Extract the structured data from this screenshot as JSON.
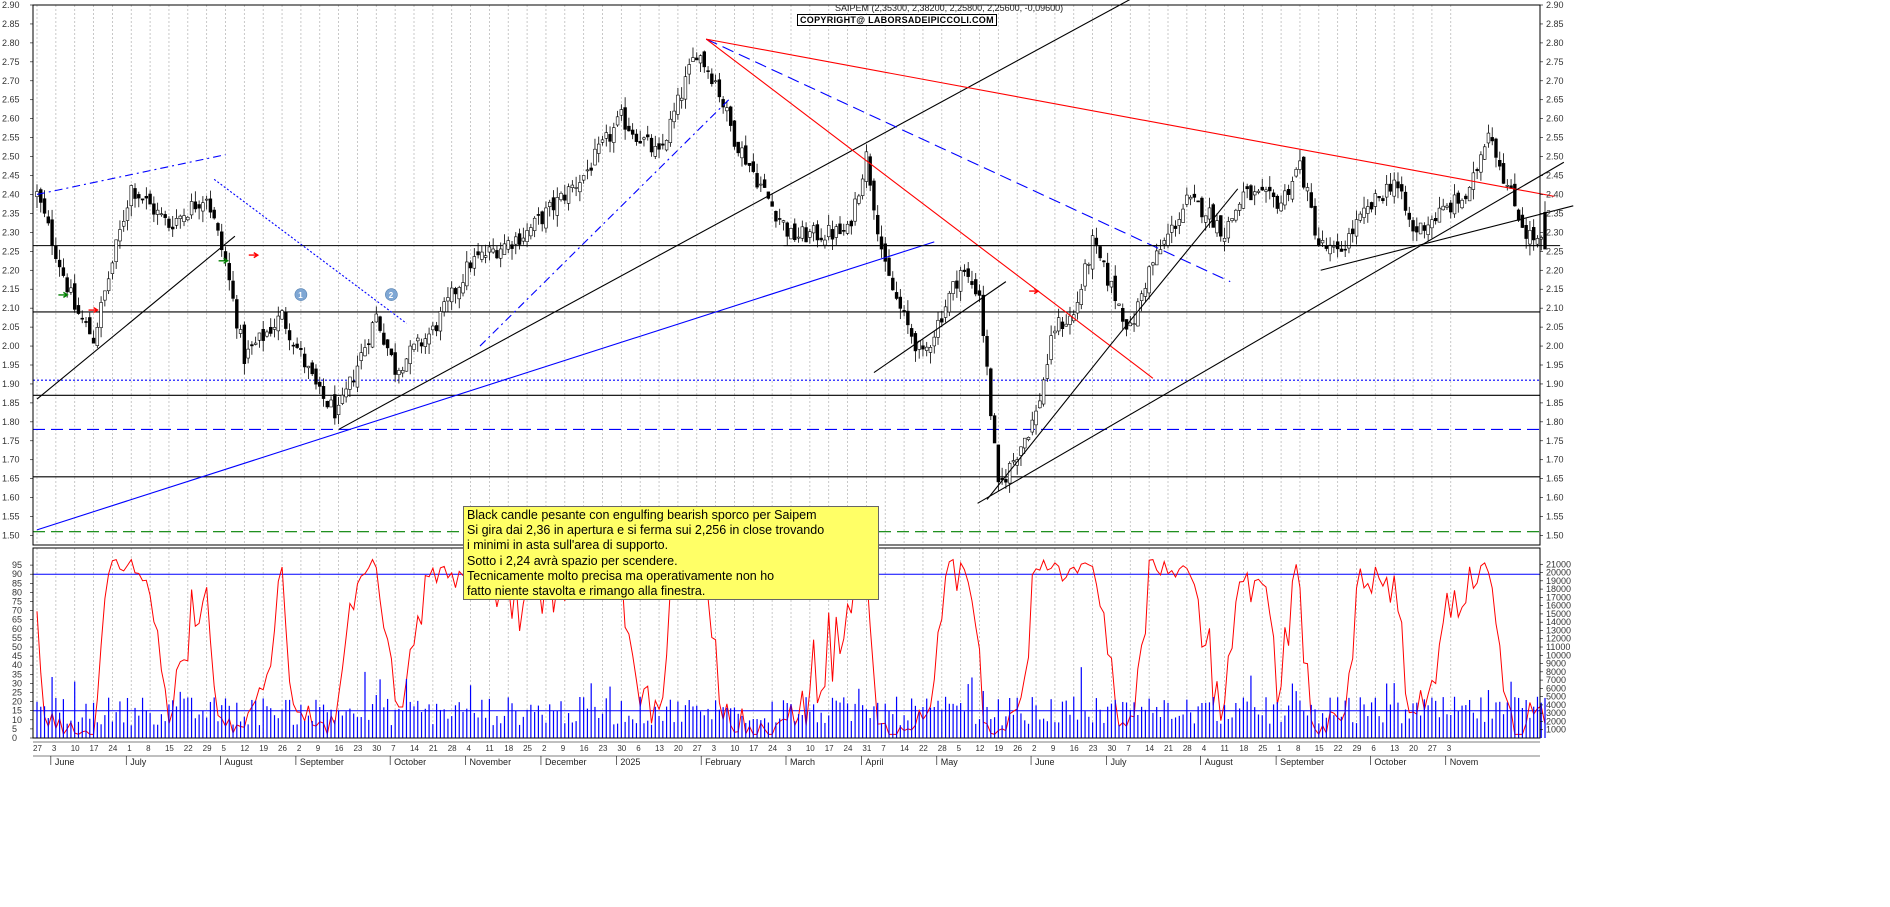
{
  "title": "SAIPEM (2,35300, 2,38200, 2,25800, 2,25600, -0,09600)",
  "copyright": "COPYRIGHT@ LABORSADEIPICCOLI.COM",
  "comment_lines": [
    "Black candle pesante con engulfing bearish sporco per Saipem",
    "Si gira dai 2,36 in apertura e si ferma sui 2,256 in close trovando",
    "i minimi in asta sull'area di supporto.",
    "Sotto i 2,24 avrà spazio per scendere.",
    "Tecnicamente molto precisa ma operativamente non ho",
    "fatto niente stavolta e rimango alla finestra."
  ],
  "colors": {
    "candle_up": "#ffffff",
    "candle_down": "#000000",
    "red_line": "#ff0000",
    "blue_line": "#0000ff",
    "green_line": "#008000",
    "oscillator": "#ff0000",
    "volume": "#0000ff",
    "comment_bg": "#ffff66"
  },
  "markers": [
    {
      "label": "1",
      "price": 2.12,
      "month_ref": "July 26"
    },
    {
      "label": "2",
      "price": 2.12,
      "month_ref": "September 23"
    }
  ],
  "chart_data": [
    {
      "type": "candlestick",
      "title": "SAIPEM (2,35300, 2,38200, 2,25800, 2,25600, -0,09600)",
      "ylim": [
        1.475,
        2.9
      ],
      "y_ticks": [
        "1.50",
        "1.55",
        "1.60",
        "1.65",
        "1.70",
        "1.75",
        "1.80",
        "1.85",
        "1.90",
        "1.95",
        "2.00",
        "2.05",
        "2.10",
        "2.15",
        "2.20",
        "2.25",
        "2.30",
        "2.35",
        "2.40",
        "2.45",
        "2.50",
        "2.55",
        "2.60",
        "2.65",
        "2.70",
        "2.75",
        "2.80",
        "2.85",
        "2.90"
      ],
      "months": [
        "June",
        "July",
        "August",
        "September",
        "October",
        "November",
        "December",
        "2025",
        "February",
        "March",
        "April",
        "May",
        "June",
        "July",
        "August",
        "September",
        "October",
        "Novem"
      ],
      "day_labels": [
        "27",
        "3",
        "10",
        "17",
        "24",
        "1",
        "8",
        "15",
        "22",
        "29",
        "5",
        "12",
        "19",
        "26",
        "2",
        "9",
        "16",
        "23",
        "30",
        "7",
        "14",
        "21",
        "28",
        "4",
        "11",
        "18",
        "25",
        "2",
        "9",
        "16",
        "23",
        "30",
        "6",
        "13",
        "20",
        "27",
        "3",
        "10",
        "17",
        "24",
        "3",
        "10",
        "17",
        "24",
        "31",
        "7",
        "14",
        "22",
        "28",
        "5",
        "12",
        "19",
        "26",
        "2",
        "9",
        "16",
        "23",
        "30",
        "7",
        "14",
        "21",
        "28",
        "4",
        "11",
        "18",
        "25",
        "1",
        "8",
        "15",
        "22",
        "29",
        "6",
        "13",
        "20",
        "27",
        "3"
      ],
      "anchors": [
        {
          "week": 0,
          "close": 2.4
        },
        {
          "week": 2,
          "close": 2.1
        },
        {
          "week": 3,
          "close": 2.02
        },
        {
          "week": 5,
          "close": 2.42
        },
        {
          "week": 7,
          "close": 2.32
        },
        {
          "week": 9,
          "close": 2.4
        },
        {
          "week": 10,
          "close": 2.22
        },
        {
          "week": 11,
          "close": 1.97
        },
        {
          "week": 13,
          "close": 2.08
        },
        {
          "week": 15,
          "close": 1.87
        },
        {
          "week": 16,
          "close": 1.82
        },
        {
          "week": 18,
          "close": 2.08
        },
        {
          "week": 19,
          "close": 1.94
        },
        {
          "week": 21,
          "close": 2.04
        },
        {
          "week": 23,
          "close": 2.22
        },
        {
          "week": 26,
          "close": 2.3
        },
        {
          "week": 29,
          "close": 2.45
        },
        {
          "week": 31,
          "close": 2.6
        },
        {
          "week": 33,
          "close": 2.5
        },
        {
          "week": 35,
          "close": 2.78
        },
        {
          "week": 36,
          "close": 2.7
        },
        {
          "week": 37,
          "close": 2.55
        },
        {
          "week": 39,
          "close": 2.37
        },
        {
          "week": 40,
          "close": 2.29
        },
        {
          "week": 43,
          "close": 2.3
        },
        {
          "week": 44,
          "close": 2.5
        },
        {
          "week": 45,
          "close": 2.2
        },
        {
          "week": 46,
          "close": 2.07
        },
        {
          "week": 47,
          "close": 1.97
        },
        {
          "week": 49,
          "close": 2.2
        },
        {
          "week": 50,
          "close": 2.14
        },
        {
          "week": 51,
          "close": 1.62
        },
        {
          "week": 52,
          "close": 1.72
        },
        {
          "week": 53,
          "close": 1.82
        },
        {
          "week": 54,
          "close": 2.05
        },
        {
          "week": 55,
          "close": 2.08
        },
        {
          "week": 56,
          "close": 2.27
        },
        {
          "week": 58,
          "close": 2.04
        },
        {
          "week": 59,
          "close": 2.2
        },
        {
          "week": 61,
          "close": 2.38
        },
        {
          "week": 62,
          "close": 2.36
        },
        {
          "week": 63,
          "close": 2.3
        },
        {
          "week": 64,
          "close": 2.4
        },
        {
          "week": 66,
          "close": 2.38
        },
        {
          "week": 67,
          "close": 2.48
        },
        {
          "week": 68,
          "close": 2.27
        },
        {
          "week": 69,
          "close": 2.24
        },
        {
          "week": 70,
          "close": 2.32
        },
        {
          "week": 72,
          "close": 2.44
        },
        {
          "week": 73,
          "close": 2.3
        },
        {
          "week": 75,
          "close": 2.37
        },
        {
          "week": 76,
          "close": 2.4
        },
        {
          "week": 77,
          "close": 2.58
        },
        {
          "week": 78,
          "close": 2.42
        },
        {
          "week": 79,
          "close": 2.3
        },
        {
          "week": 80,
          "close": 2.26
        }
      ],
      "last_candle": {
        "open": 2.353,
        "high": 2.382,
        "low": 2.258,
        "close": 2.256,
        "change": -0.096
      },
      "horizontal_levels": [
        {
          "price": 2.265,
          "color": "#000000",
          "style": "solid"
        },
        {
          "price": 2.09,
          "color": "#000000",
          "style": "solid"
        },
        {
          "price": 1.91,
          "color": "#0000ff",
          "style": "dotted"
        },
        {
          "price": 1.87,
          "color": "#000000",
          "style": "solid"
        },
        {
          "price": 1.78,
          "color": "#0000ff",
          "style": "dashed"
        },
        {
          "price": 1.655,
          "color": "#000000",
          "style": "solid"
        },
        {
          "price": 1.51,
          "color": "#008000",
          "style": "dashed"
        }
      ],
      "trendlines": [
        {
          "color": "#0000ff",
          "style": "dash-dot",
          "from": {
            "week": 0,
            "price": 2.4
          },
          "to": {
            "week": 10,
            "price": 2.505
          }
        },
        {
          "color": "#000000",
          "style": "solid",
          "from": {
            "week": 0,
            "price": 1.86
          },
          "to": {
            "week": 10.5,
            "price": 2.29
          }
        },
        {
          "color": "#0000ff",
          "style": "dotted",
          "from": {
            "week": 9.4,
            "price": 2.44
          },
          "to": {
            "week": 19.6,
            "price": 2.06
          }
        },
        {
          "color": "#0000ff",
          "style": "solid",
          "from": {
            "week": 0,
            "price": 1.515
          },
          "to": {
            "week": 47.6,
            "price": 2.275
          }
        },
        {
          "color": "#000000",
          "style": "solid",
          "from": {
            "week": 16,
            "price": 1.78
          },
          "to": {
            "week": 58,
            "price": 2.915
          }
        },
        {
          "color": "#0000ff",
          "style": "dash-dot",
          "from": {
            "week": 23.5,
            "price": 2.0
          },
          "to": {
            "week": 36.8,
            "price": 2.655
          }
        },
        {
          "color": "#0000ff",
          "style": "dashed",
          "from": {
            "week": 35.5,
            "price": 2.81
          },
          "to": {
            "week": 63.3,
            "price": 2.17
          }
        },
        {
          "color": "#ff0000",
          "style": "solid",
          "from": {
            "week": 35.5,
            "price": 2.81
          },
          "to": {
            "week": 59.2,
            "price": 1.915
          }
        },
        {
          "color": "#ff0000",
          "style": "solid",
          "from": {
            "week": 35.5,
            "price": 2.81
          },
          "to": {
            "week": 80.5,
            "price": 2.395
          }
        },
        {
          "color": "#000000",
          "style": "solid",
          "from": {
            "week": 39.6,
            "price": 2.265
          },
          "to": {
            "week": 80.8,
            "price": 2.265
          }
        },
        {
          "color": "#000000",
          "style": "solid",
          "from": {
            "week": 44.4,
            "price": 1.93
          },
          "to": {
            "week": 51.4,
            "price": 2.17
          }
        },
        {
          "color": "#000000",
          "style": "solid",
          "from": {
            "week": 49.9,
            "price": 1.585
          },
          "to": {
            "week": 81,
            "price": 2.485
          }
        },
        {
          "color": "#000000",
          "style": "solid",
          "from": {
            "week": 50.4,
            "price": 1.595
          },
          "to": {
            "week": 56.9,
            "price": 2.0
          }
        },
        {
          "color": "#000000",
          "style": "solid",
          "from": {
            "week": 56.9,
            "price": 2.0
          },
          "to": {
            "week": 63.7,
            "price": 2.415
          }
        },
        {
          "color": "#000000",
          "style": "solid",
          "from": {
            "week": 68.1,
            "price": 2.2
          },
          "to": {
            "week": 81.5,
            "price": 2.37
          }
        }
      ],
      "arrows": [
        {
          "color": "#008000",
          "week": 1.4,
          "price": 2.135
        },
        {
          "color": "#ff0000",
          "week": 3.0,
          "price": 2.095
        },
        {
          "color": "#008000",
          "week": 9.9,
          "price": 2.225
        },
        {
          "color": "#ff0000",
          "week": 11.5,
          "price": 2.24
        },
        {
          "color": "#ff0000",
          "week": 52.9,
          "price": 2.145
        }
      ]
    },
    {
      "type": "line",
      "name": "oscillator",
      "ylim": [
        0,
        100
      ],
      "y_ticks": [
        "0",
        "5",
        "10",
        "15",
        "20",
        "25",
        "30",
        "35",
        "40",
        "45",
        "50",
        "55",
        "60",
        "65",
        "70",
        "75",
        "80",
        "85",
        "90",
        "95"
      ],
      "reference_levels": [
        90,
        15
      ]
    },
    {
      "type": "bar",
      "name": "volume",
      "ylim": [
        0,
        22000
      ],
      "y_ticks": [
        "1000",
        "2000",
        "3000",
        "4000",
        "5000",
        "6000",
        "7000",
        "8000",
        "9000",
        "10000",
        "11000",
        "12000",
        "13000",
        "14000",
        "15000",
        "16000",
        "17000",
        "18000",
        "19000",
        "20000",
        "21000"
      ]
    }
  ]
}
